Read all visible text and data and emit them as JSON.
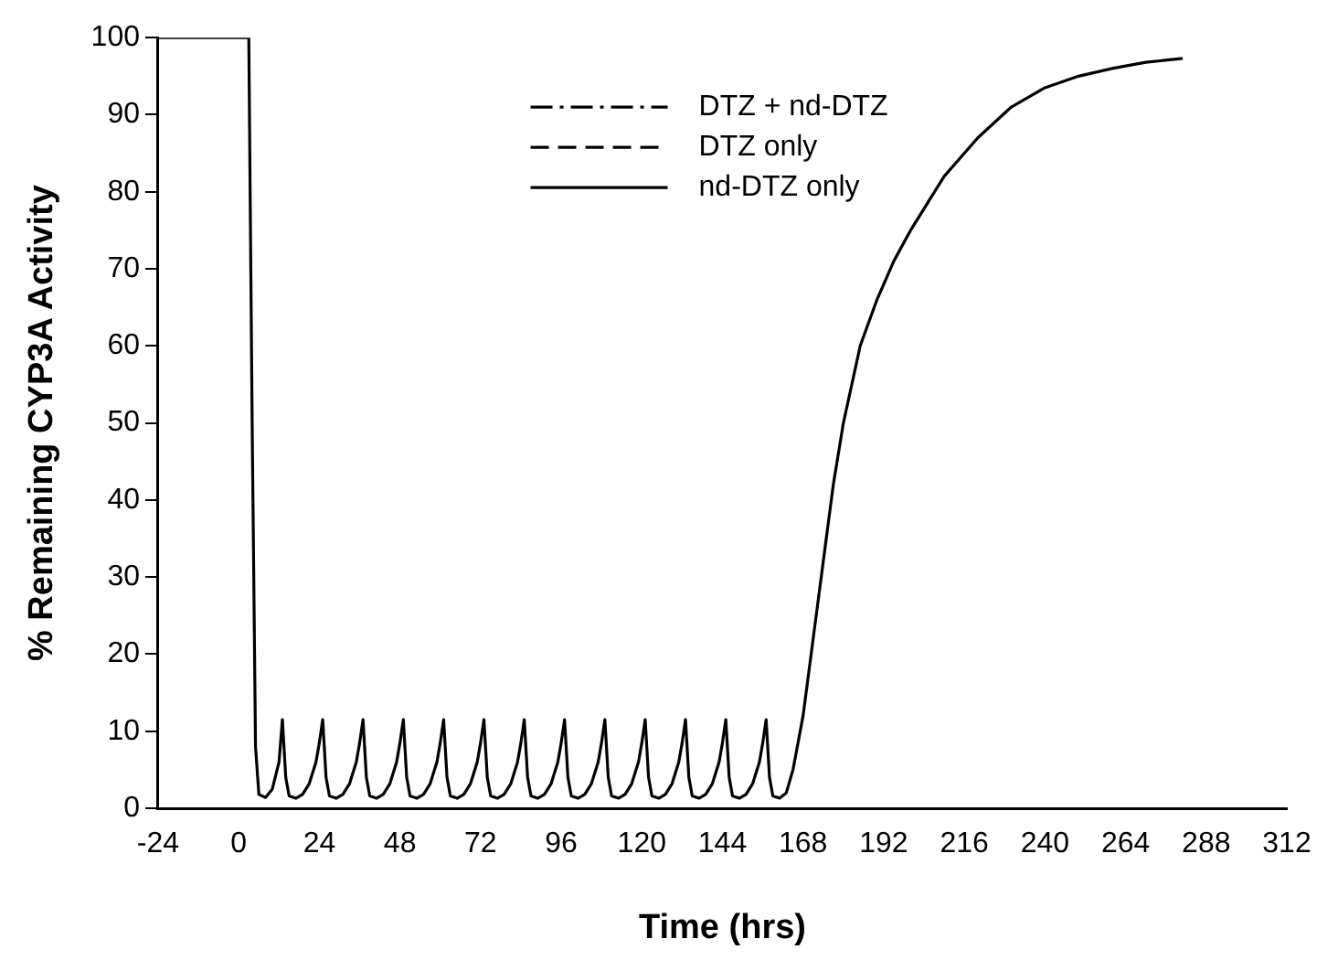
{
  "chart_data": {
    "type": "line",
    "xlabel": "Time (hrs)",
    "ylabel": "% Remaining CYP3A Activity",
    "xlim": [
      -24,
      312
    ],
    "xticks": [
      -24,
      0,
      24,
      48,
      72,
      96,
      120,
      144,
      168,
      192,
      216,
      240,
      264,
      288,
      312
    ],
    "ylim": [
      0,
      100
    ],
    "yticks": [
      0,
      10,
      20,
      30,
      40,
      50,
      60,
      70,
      80,
      90,
      100
    ],
    "grid": false,
    "legend": "top",
    "marker": "none",
    "series": [
      {
        "name": "DTZ + nd-DTZ",
        "color": "#000000",
        "line_style": "dashdot"
      },
      {
        "name": "DTZ only",
        "color": "#000000",
        "line_style": "dashed"
      },
      {
        "name": "nd-DTZ only",
        "color": "#000000",
        "line_style": "solid",
        "x": [
          -24,
          3,
          4,
          5,
          6,
          8,
          10,
          12,
          13,
          14,
          15,
          17,
          19,
          21,
          23,
          24,
          25,
          26,
          27,
          29,
          31,
          33,
          35,
          36,
          37,
          38,
          39,
          41,
          43,
          45,
          47,
          48,
          49,
          50,
          51,
          53,
          55,
          57,
          59,
          60,
          61,
          62,
          63,
          65,
          67,
          69,
          71,
          72,
          73,
          74,
          75,
          77,
          79,
          81,
          83,
          84,
          85,
          86,
          87,
          89,
          91,
          93,
          95,
          96,
          97,
          98,
          99,
          101,
          103,
          105,
          107,
          108,
          109,
          110,
          111,
          113,
          115,
          117,
          119,
          120,
          121,
          122,
          123,
          125,
          127,
          129,
          131,
          132,
          133,
          134,
          135,
          137,
          139,
          141,
          143,
          144,
          145,
          146,
          147,
          149,
          151,
          153,
          155,
          156,
          157,
          158,
          159,
          161,
          163,
          165,
          168,
          171,
          174,
          177,
          180,
          185,
          190,
          195,
          200,
          210,
          220,
          230,
          240,
          250,
          260,
          270,
          281
        ],
        "values": [
          100,
          100,
          50,
          8,
          1.8,
          1.4,
          2.5,
          6,
          11.5,
          4,
          1.6,
          1.3,
          1.8,
          3.2,
          6,
          8.5,
          11.5,
          4,
          1.6,
          1.3,
          1.8,
          3.2,
          6,
          8.5,
          11.5,
          4,
          1.6,
          1.3,
          1.8,
          3.2,
          6,
          8.5,
          11.5,
          4,
          1.6,
          1.3,
          1.8,
          3.2,
          6,
          8.5,
          11.5,
          4,
          1.6,
          1.3,
          1.8,
          3.2,
          6,
          8.5,
          11.5,
          4,
          1.6,
          1.3,
          1.8,
          3.2,
          6,
          8.5,
          11.5,
          4,
          1.6,
          1.3,
          1.8,
          3.2,
          6,
          8.5,
          11.5,
          4,
          1.6,
          1.3,
          1.8,
          3.2,
          6,
          8.5,
          11.5,
          4,
          1.6,
          1.3,
          1.8,
          3.2,
          6,
          8.5,
          11.5,
          4,
          1.6,
          1.3,
          1.8,
          3.2,
          6,
          8.5,
          11.5,
          4,
          1.6,
          1.3,
          1.8,
          3.2,
          6,
          8.5,
          11.5,
          4,
          1.6,
          1.3,
          1.8,
          3.2,
          6,
          8.5,
          11.5,
          4,
          1.6,
          1.3,
          2,
          5,
          12,
          22,
          32,
          42,
          50,
          60,
          66,
          71,
          75,
          82,
          87,
          91,
          93.5,
          95,
          96,
          96.8,
          97.3
        ]
      }
    ]
  }
}
